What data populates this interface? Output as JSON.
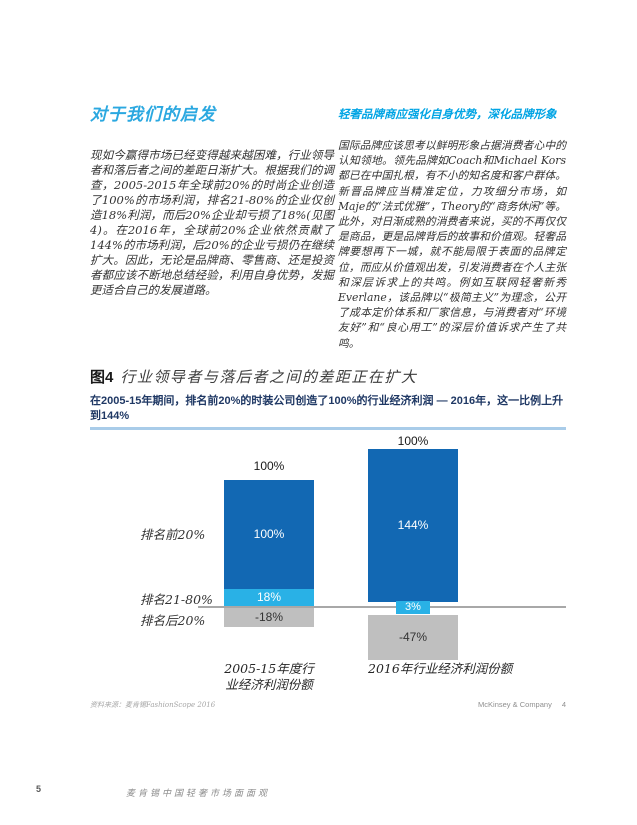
{
  "page": {
    "number": "5",
    "footer_title": "麦肯锡中国轻奢市场面面观"
  },
  "colors": {
    "accent_blue": "#2BA8E0",
    "right_heading_blue": "#00A4E4",
    "subtitle_navy": "#1F3864",
    "bar_dark_blue": "#1268B3",
    "bar_light_blue": "#29B1E6",
    "bar_gray": "#BFBFBF",
    "axis_gray": "#A8A8A8",
    "rule_light_blue": "#A9CCE9"
  },
  "left_column": {
    "heading": "对于我们的启发",
    "body": "现如今赢得市场已经变得越来越困难，行业领导者和落后者之间的差距日渐扩大。根据我们的调查，2005-2015年全球前20%的时尚企业创造了100%的市场利润，排名21-80%的企业仅创造18%利润，而后20%企业却亏损了18%(见图4)。在2016年，全球前20%企业依然贡献了144%的市场利润，后20%的企业亏损仍在继续扩大。因此，无论是品牌商、零售商、还是投资者都应该不断地总结经验，利用自身优势，发掘更适合自己的发展道路。"
  },
  "right_column": {
    "heading": "轻奢品牌商应强化自身优势，深化品牌形象",
    "body": "国际品牌应该思考以鲜明形象占据消费者心中的认知领地。领先品牌如Coach和Michael Kors都已在中国扎根，有不小的知名度和客户群体。新晋品牌应当精准定位，力攻细分市场，如Maje的“法式优雅”，Theory的“商务休闲”等。此外，对日渐成熟的消费者来说，买的不再仅仅是商品，更是品牌背后的故事和价值观。轻奢品牌要想再下一城，就不能局限于表面的品牌定位，而应从价值观出发，引发消费者在个人主张和深层诉求上的共鸣。例如互联网轻奢新秀Everlane，该品牌以“极简主义”为理念，公开了成本定价体系和厂家信息，与消费者对“环境友好”和“良心用工”的深层价值诉求产生了共鸣。"
  },
  "figure": {
    "label": "图4",
    "title": "行业领导者与落后者之间的差距正在扩大",
    "subtitle": "在2005-15年期间，排名前20%的时装公司创造了100%的行业经济利润 — 2016年，这一比例上升到144%",
    "source": "资料来源：麦肯锡FashionScope 2016",
    "brand": "McKinsey & Company",
    "slide_number": "4"
  },
  "chart_data": {
    "type": "bar",
    "subtype": "diverging-stacked-columns",
    "title": "行业领导者与落后者之间的差距正在扩大",
    "categories": [
      "2005-15年度行业经济利润份额",
      "2016年行业经济利润份额"
    ],
    "x_tick_display": [
      "2005-15年度行\n业经济利润份额",
      "2016年行业经济利润份额"
    ],
    "row_labels": [
      "排名前20%",
      "排名21-80%",
      "排名后20%"
    ],
    "series": [
      {
        "name": "排名前20%",
        "values": [
          100,
          144
        ],
        "color": "#1268B3"
      },
      {
        "name": "排名21-80%",
        "values": [
          18,
          3
        ],
        "color": "#29B1E6"
      },
      {
        "name": "排名后20%",
        "values": [
          -18,
          -47
        ],
        "color": "#BFBFBF"
      }
    ],
    "bar_totals": [
      "100%",
      "100%"
    ],
    "segment_labels": [
      [
        "100%",
        "18%",
        "-18%"
      ],
      [
        "144%",
        "3%",
        "-47%"
      ]
    ],
    "unit": "%",
    "baseline": 0,
    "grid": false,
    "legend": "none"
  }
}
